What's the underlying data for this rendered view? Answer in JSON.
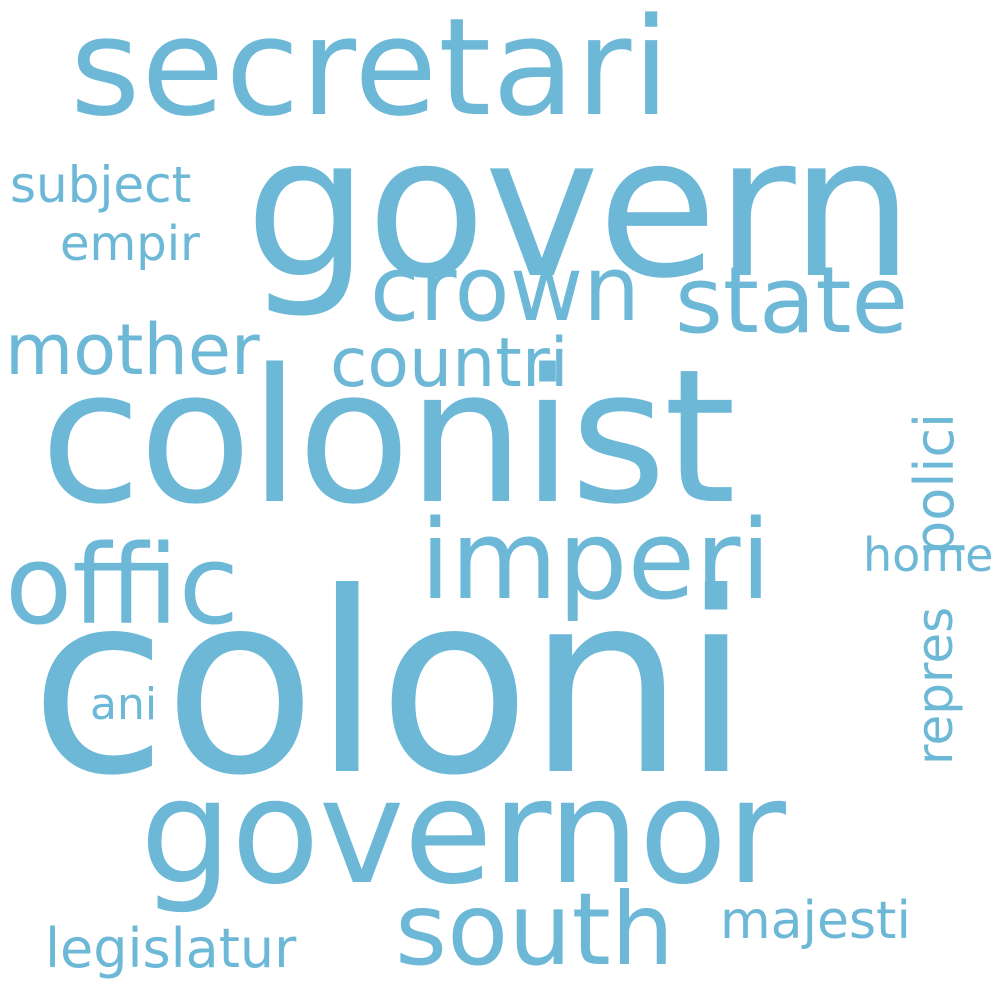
{
  "cloud": {
    "word_color": "#6db8d6",
    "background_color": "#ffffff",
    "words": [
      {
        "text": "coloni"
      },
      {
        "text": "colonist"
      },
      {
        "text": "govern"
      },
      {
        "text": "secretari"
      },
      {
        "text": "governor"
      },
      {
        "text": "imperi"
      },
      {
        "text": "offic"
      },
      {
        "text": "state"
      },
      {
        "text": "crown"
      },
      {
        "text": "south"
      },
      {
        "text": "countri"
      },
      {
        "text": "mother"
      },
      {
        "text": "legislatur"
      },
      {
        "text": "majesti"
      },
      {
        "text": "subject"
      },
      {
        "text": "empir"
      },
      {
        "text": "home"
      },
      {
        "text": "ani"
      },
      {
        "text": "polici"
      },
      {
        "text": "repres"
      }
    ]
  }
}
